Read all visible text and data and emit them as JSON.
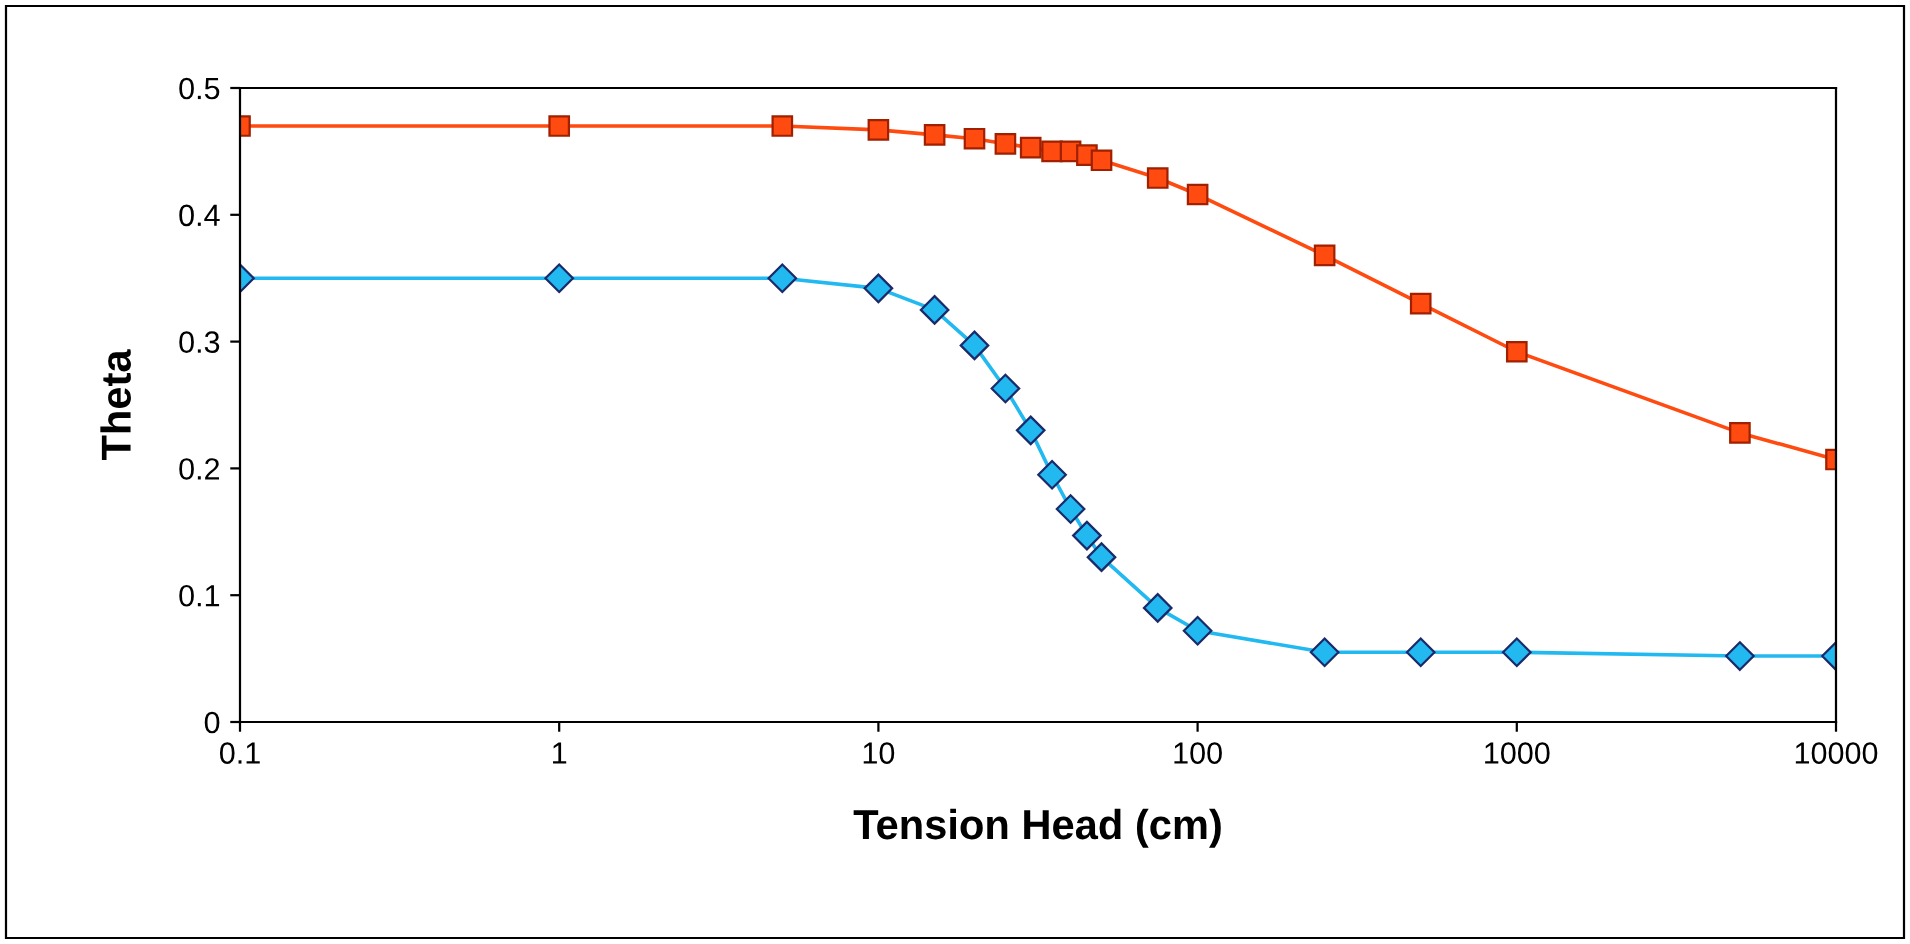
{
  "chart_data": {
    "type": "line",
    "xlabel": "Tension Head (cm)",
    "ylabel": "Theta",
    "log": "x",
    "grid": false,
    "legend": false,
    "xlim": [
      0.1,
      10000
    ],
    "xticks": [
      0.1,
      1,
      10,
      100,
      1000,
      10000
    ],
    "ylim": [
      0,
      0.5
    ],
    "yticks": [
      0,
      0.1,
      0.2,
      0.3,
      0.4,
      0.5
    ],
    "series": [
      {
        "color": "#ff4a10",
        "marker": "square",
        "x": [
          0.1,
          1,
          5,
          10,
          15,
          20,
          25,
          30,
          35,
          40,
          45,
          50,
          75,
          100,
          250,
          500,
          1000,
          5000,
          10000
        ],
        "values": [
          0.47,
          0.47,
          0.47,
          0.467,
          0.463,
          0.46,
          0.456,
          0.453,
          0.45,
          0.45,
          0.447,
          0.443,
          0.429,
          0.416,
          0.368,
          0.33,
          0.292,
          0.228,
          0.207
        ]
      },
      {
        "color": "#22b8f0",
        "marker": "diamond",
        "x": [
          0.1,
          1,
          5,
          10,
          15,
          20,
          25,
          30,
          35,
          40,
          45,
          50,
          75,
          100,
          250,
          500,
          1000,
          5000,
          10000
        ],
        "values": [
          0.35,
          0.35,
          0.35,
          0.342,
          0.325,
          0.297,
          0.263,
          0.23,
          0.195,
          0.168,
          0.147,
          0.13,
          0.09,
          0.072,
          0.055,
          0.055,
          0.055,
          0.052,
          0.052
        ]
      }
    ]
  }
}
